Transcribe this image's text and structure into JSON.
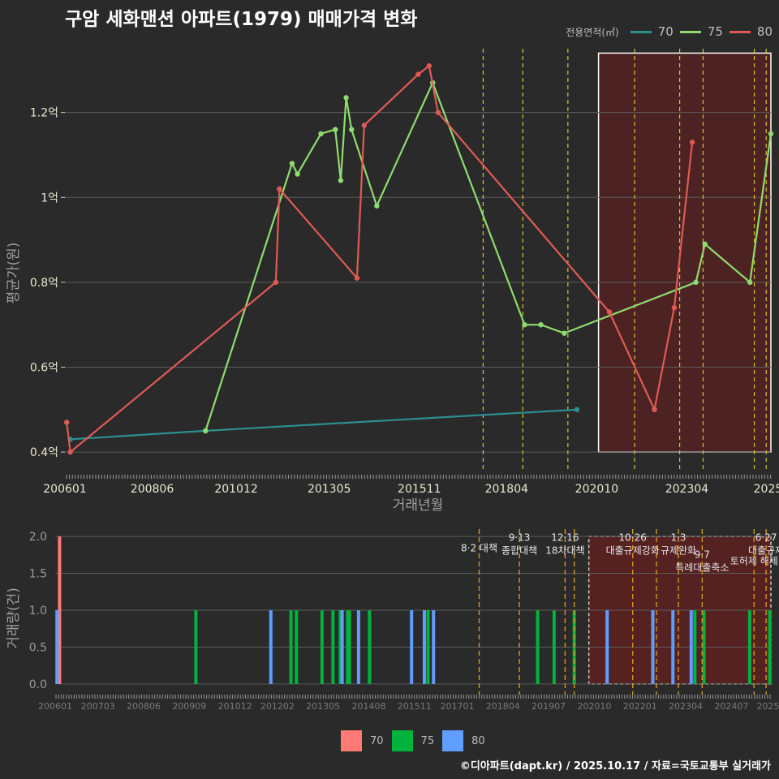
{
  "header": {
    "title": "구암 세화맨션 아파트(1979) 매매가격 변화",
    "footer": "©디아파트(dapt.kr) / 2025.10.17 / 자료=국토교통부 실거래가"
  },
  "colors": {
    "s70_line": "#2e8f8f",
    "s75_line": "#8fdc6e",
    "s80_line": "#e05a55",
    "s70_bar": "#ff7a74",
    "s75_bar": "#00b33c",
    "s80_bar": "#5f9dff"
  },
  "legend_top": {
    "title": "전용면적(㎡)",
    "items": [
      {
        "label": "70",
        "color": "#2e8f8f"
      },
      {
        "label": "75",
        "color": "#8fdc6e"
      },
      {
        "label": "80",
        "color": "#e05a55"
      }
    ]
  },
  "legend_bottom": {
    "items": [
      {
        "label": "70",
        "color": "#ff7a74"
      },
      {
        "label": "75",
        "color": "#00b33c"
      },
      {
        "label": "80",
        "color": "#5f9dff"
      }
    ]
  },
  "chart_data": [
    {
      "type": "line",
      "title": "구암 세화맨션 아파트(1979) 매매가격 변화",
      "xlabel": "거래년월",
      "ylabel": "평균가(원)",
      "xlim": [
        2006.0,
        2025.58
      ],
      "ylim": [
        0.36,
        1.36
      ],
      "yticks": [
        {
          "v": 0.4,
          "label": "0.4억"
        },
        {
          "v": 0.6,
          "label": "0.6억"
        },
        {
          "v": 0.8,
          "label": "0.8억"
        },
        {
          "v": 1.0,
          "label": "1억"
        },
        {
          "v": 1.2,
          "label": "1.2억"
        }
      ],
      "xticks": [
        {
          "v": 2006.0,
          "label": "200601"
        },
        {
          "v": 2008.42,
          "label": "200806"
        },
        {
          "v": 2010.75,
          "label": "201012"
        },
        {
          "v": 2013.33,
          "label": "201305"
        },
        {
          "v": 2015.83,
          "label": "201511"
        },
        {
          "v": 2018.25,
          "label": "201804"
        },
        {
          "v": 2020.75,
          "label": "202010"
        },
        {
          "v": 2023.25,
          "label": "202304"
        },
        {
          "v": 2025.5,
          "label": "2025"
        }
      ],
      "vlines": [
        2017.6,
        2018.7,
        2019.95,
        2021.8,
        2023.05,
        2023.7,
        2025.12,
        2025.45
      ],
      "highlight": {
        "x0": 2020.8,
        "x1": 2025.58,
        "y0": 0.4,
        "y1": 1.34
      },
      "series": [
        {
          "name": "70",
          "points": [
            [
              2006.15,
              0.43
            ],
            [
              2009.9,
              0.45
            ],
            [
              2020.2,
              0.5
            ]
          ]
        },
        {
          "name": "75",
          "points": [
            [
              2009.9,
              0.45
            ],
            [
              2012.3,
              1.08
            ],
            [
              2012.45,
              1.055
            ],
            [
              2013.1,
              1.15
            ],
            [
              2013.5,
              1.16
            ],
            [
              2013.65,
              1.04
            ],
            [
              2013.8,
              1.235
            ],
            [
              2013.95,
              1.16
            ],
            [
              2014.65,
              0.98
            ],
            [
              2016.2,
              1.27
            ],
            [
              2018.75,
              0.7
            ],
            [
              2019.2,
              0.7
            ],
            [
              2019.85,
              0.68
            ],
            [
              2023.5,
              0.8
            ],
            [
              2023.75,
              0.89
            ],
            [
              2025.0,
              0.8
            ],
            [
              2025.58,
              1.15
            ]
          ]
        },
        {
          "name": "80",
          "points": [
            [
              2006.05,
              0.47
            ],
            [
              2006.15,
              0.4
            ],
            [
              2011.85,
              0.8
            ],
            [
              2011.95,
              1.02
            ],
            [
              2014.1,
              0.81
            ],
            [
              2014.3,
              1.17
            ],
            [
              2015.8,
              1.29
            ],
            [
              2016.1,
              1.31
            ],
            [
              2016.35,
              1.2
            ],
            [
              2021.1,
              0.73
            ],
            [
              2022.35,
              0.5
            ],
            [
              2022.9,
              0.74
            ],
            [
              2023.4,
              1.13
            ]
          ]
        }
      ]
    },
    {
      "type": "bar",
      "xlabel": "",
      "ylabel": "거래량(건)",
      "xlim": [
        2006.0,
        2025.58
      ],
      "ylim": [
        -0.1,
        2.1
      ],
      "yticks": [
        {
          "v": 0.0,
          "label": "0.0"
        },
        {
          "v": 0.5,
          "label": "0.5"
        },
        {
          "v": 1.0,
          "label": "1.0"
        },
        {
          "v": 1.5,
          "label": "1.5"
        },
        {
          "v": 2.0,
          "label": "2.0"
        }
      ],
      "xticks": [
        {
          "v": 2006.0,
          "label": "200601"
        },
        {
          "v": 2007.17,
          "label": "200703"
        },
        {
          "v": 2008.42,
          "label": "200806"
        },
        {
          "v": 2009.67,
          "label": "200909"
        },
        {
          "v": 2010.92,
          "label": "201012"
        },
        {
          "v": 2012.08,
          "label": "201202"
        },
        {
          "v": 2013.33,
          "label": "201305"
        },
        {
          "v": 2014.58,
          "label": "201408"
        },
        {
          "v": 2015.83,
          "label": "201511"
        },
        {
          "v": 2017.0,
          "label": "201701"
        },
        {
          "v": 2018.25,
          "label": "201804"
        },
        {
          "v": 2019.5,
          "label": "201907"
        },
        {
          "v": 2020.75,
          "label": "202010"
        },
        {
          "v": 2022.0,
          "label": "202201"
        },
        {
          "v": 2023.25,
          "label": "202304"
        },
        {
          "v": 2024.5,
          "label": "202407"
        },
        {
          "v": 2025.5,
          "label": "2025"
        }
      ],
      "policy_lines": [
        2017.6,
        2018.7,
        2019.95,
        2020.2,
        2021.8,
        2022.45,
        2023.05,
        2023.7,
        2025.12,
        2025.45
      ],
      "highlight": {
        "x0": 2020.6,
        "x1": 2025.58,
        "y0": 0.0,
        "y1": 2.0
      },
      "annotations": [
        {
          "x": 2017.6,
          "y": 1.8,
          "lines": [
            "8·2 대책"
          ]
        },
        {
          "x": 2018.7,
          "y": 1.85,
          "lines": [
            "9·13",
            "종합대책"
          ]
        },
        {
          "x": 2019.95,
          "y": 1.85,
          "lines": [
            "12·16",
            "18차대책"
          ]
        },
        {
          "x": 2021.8,
          "y": 1.85,
          "lines": [
            "10·26",
            "대출규제강화"
          ]
        },
        {
          "x": 2023.05,
          "y": 1.85,
          "lines": [
            "1·3",
            "규제완화"
          ]
        },
        {
          "x": 2023.7,
          "y": 1.62,
          "lines": [
            "9·7",
            "특례대출축소"
          ]
        },
        {
          "x": 2025.12,
          "y": 1.62,
          "lines": [
            "토허제 해제"
          ]
        },
        {
          "x": 2025.45,
          "y": 1.85,
          "lines": [
            "6·27",
            "대출규제"
          ]
        }
      ],
      "series": [
        {
          "name": "70",
          "bars": [
            [
              2006.12,
              2
            ]
          ]
        },
        {
          "name": "75",
          "bars": [
            [
              2009.85,
              1
            ],
            [
              2012.45,
              1
            ],
            [
              2012.6,
              1
            ],
            [
              2013.3,
              1
            ],
            [
              2013.6,
              1
            ],
            [
              2013.8,
              1
            ],
            [
              2014.0,
              1
            ],
            [
              2014.05,
              1
            ],
            [
              2014.6,
              1
            ],
            [
              2016.2,
              1
            ],
            [
              2019.2,
              1
            ],
            [
              2019.65,
              1
            ],
            [
              2020.2,
              1
            ],
            [
              2023.5,
              1
            ],
            [
              2023.75,
              1
            ],
            [
              2025.0,
              1
            ],
            [
              2025.55,
              1
            ]
          ]
        },
        {
          "name": "80",
          "bars": [
            [
              2006.05,
              1
            ],
            [
              2011.9,
              1
            ],
            [
              2013.85,
              1
            ],
            [
              2014.3,
              1
            ],
            [
              2015.75,
              1
            ],
            [
              2016.1,
              1
            ],
            [
              2016.35,
              1
            ],
            [
              2021.1,
              1
            ],
            [
              2022.35,
              1
            ],
            [
              2022.9,
              1
            ],
            [
              2023.4,
              1
            ]
          ]
        }
      ]
    }
  ]
}
